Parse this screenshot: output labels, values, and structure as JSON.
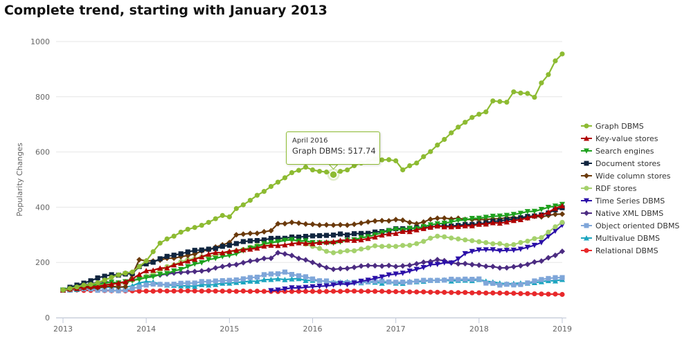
{
  "page": {
    "title": "Complete trend, starting with January 2013"
  },
  "tooltip": {
    "date": "April 2016",
    "label": "Graph DBMS: 517.74",
    "series": "Graph DBMS"
  },
  "chart_data": {
    "type": "line",
    "title": "Complete trend, starting with January 2013",
    "xlabel": "",
    "ylabel": "Popularity Changes",
    "xlim": [
      2013.0,
      2019.0
    ],
    "ylim": [
      0,
      1000
    ],
    "yticks": [
      0,
      200,
      400,
      600,
      800,
      1000
    ],
    "xticks": [
      2013,
      2014,
      2015,
      2016,
      2017,
      2018,
      2019
    ],
    "x_start": "2013-01",
    "x_end": "2019-01",
    "grid": true,
    "legend_position": "right",
    "series": [
      {
        "name": "Graph DBMS",
        "color": "#8dbb32",
        "marker": "circle",
        "anchors": [
          [
            2013.0,
            100
          ],
          [
            2013.333,
            120
          ],
          [
            2013.667,
            155
          ],
          [
            2013.833,
            165
          ],
          [
            2014.0,
            205
          ],
          [
            2014.167,
            270
          ],
          [
            2014.333,
            295
          ],
          [
            2014.5,
            320
          ],
          [
            2014.75,
            345
          ],
          [
            2014.917,
            370
          ],
          [
            2015.0,
            365
          ],
          [
            2015.083,
            395
          ],
          [
            2015.25,
            425
          ],
          [
            2015.5,
            475
          ],
          [
            2015.75,
            525
          ],
          [
            2015.917,
            545
          ],
          [
            2016.0,
            535
          ],
          [
            2016.083,
            530
          ],
          [
            2016.25,
            520
          ],
          [
            2016.417,
            535
          ],
          [
            2016.583,
            560
          ],
          [
            2016.75,
            575
          ],
          [
            2017.0,
            568
          ],
          [
            2017.083,
            535
          ],
          [
            2017.25,
            560
          ],
          [
            2017.5,
            625
          ],
          [
            2017.75,
            690
          ],
          [
            2017.917,
            725
          ],
          [
            2018.083,
            745
          ],
          [
            2018.167,
            785
          ],
          [
            2018.333,
            780
          ],
          [
            2018.417,
            818
          ],
          [
            2018.583,
            812
          ],
          [
            2018.667,
            798
          ],
          [
            2018.75,
            850
          ],
          [
            2018.833,
            880
          ],
          [
            2018.917,
            930
          ],
          [
            2019.0,
            955
          ]
        ]
      },
      {
        "name": "Key-value stores",
        "color": "#b00000",
        "marker": "triangle-up",
        "anchors": [
          [
            2013.0,
            100
          ],
          [
            2013.25,
            110
          ],
          [
            2013.5,
            118
          ],
          [
            2013.75,
            130
          ],
          [
            2014.0,
            170
          ],
          [
            2014.25,
            180
          ],
          [
            2014.5,
            205
          ],
          [
            2014.75,
            230
          ],
          [
            2015.0,
            240
          ],
          [
            2015.25,
            248
          ],
          [
            2015.5,
            262
          ],
          [
            2015.75,
            268
          ],
          [
            2016.0,
            268
          ],
          [
            2016.25,
            275
          ],
          [
            2016.5,
            280
          ],
          [
            2016.75,
            292
          ],
          [
            2017.0,
            305
          ],
          [
            2017.25,
            318
          ],
          [
            2017.5,
            332
          ],
          [
            2017.75,
            330
          ],
          [
            2018.0,
            338
          ],
          [
            2018.25,
            342
          ],
          [
            2018.5,
            355
          ],
          [
            2018.75,
            372
          ],
          [
            2019.0,
            405
          ]
        ]
      },
      {
        "name": "Search engines",
        "color": "#1ea11e",
        "marker": "triangle-down",
        "anchors": [
          [
            2013.0,
            100
          ],
          [
            2013.25,
            112
          ],
          [
            2013.5,
            125
          ],
          [
            2013.75,
            130
          ],
          [
            2014.0,
            145
          ],
          [
            2014.25,
            160
          ],
          [
            2014.5,
            185
          ],
          [
            2014.75,
            210
          ],
          [
            2015.0,
            225
          ],
          [
            2015.25,
            252
          ],
          [
            2015.5,
            272
          ],
          [
            2015.75,
            282
          ],
          [
            2016.0,
            272
          ],
          [
            2016.25,
            270
          ],
          [
            2016.5,
            282
          ],
          [
            2016.75,
            300
          ],
          [
            2017.0,
            320
          ],
          [
            2017.25,
            322
          ],
          [
            2017.5,
            340
          ],
          [
            2017.75,
            352
          ],
          [
            2018.0,
            360
          ],
          [
            2018.25,
            368
          ],
          [
            2018.5,
            378
          ],
          [
            2018.75,
            392
          ],
          [
            2019.0,
            410
          ]
        ]
      },
      {
        "name": "Document stores",
        "color": "#10253f",
        "marker": "square",
        "anchors": [
          [
            2013.0,
            100
          ],
          [
            2013.25,
            125
          ],
          [
            2013.5,
            150
          ],
          [
            2013.75,
            158
          ],
          [
            2013.833,
            160
          ],
          [
            2013.917,
            185
          ],
          [
            2014.25,
            222
          ],
          [
            2014.5,
            238
          ],
          [
            2014.75,
            248
          ],
          [
            2015.0,
            262
          ],
          [
            2015.25,
            278
          ],
          [
            2015.5,
            287
          ],
          [
            2015.75,
            292
          ],
          [
            2016.0,
            296
          ],
          [
            2016.25,
            299
          ],
          [
            2016.5,
            304
          ],
          [
            2016.75,
            310
          ],
          [
            2017.0,
            322
          ],
          [
            2017.25,
            326
          ],
          [
            2017.5,
            332
          ],
          [
            2017.75,
            334
          ],
          [
            2018.0,
            340
          ],
          [
            2018.25,
            350
          ],
          [
            2018.5,
            362
          ],
          [
            2018.75,
            372
          ],
          [
            2019.0,
            398
          ]
        ]
      },
      {
        "name": "Wide column stores",
        "color": "#6b3a0b",
        "marker": "diamond",
        "anchors": [
          [
            2013.0,
            100
          ],
          [
            2013.25,
            108
          ],
          [
            2013.5,
            112
          ],
          [
            2013.75,
            112
          ],
          [
            2013.833,
            155
          ],
          [
            2013.917,
            210
          ],
          [
            2014.083,
            205
          ],
          [
            2014.25,
            215
          ],
          [
            2014.5,
            225
          ],
          [
            2014.75,
            245
          ],
          [
            2015.0,
            272
          ],
          [
            2015.083,
            300
          ],
          [
            2015.25,
            305
          ],
          [
            2015.5,
            315
          ],
          [
            2015.583,
            340
          ],
          [
            2015.75,
            345
          ],
          [
            2016.0,
            338
          ],
          [
            2016.25,
            335
          ],
          [
            2016.5,
            338
          ],
          [
            2016.75,
            350
          ],
          [
            2017.0,
            355
          ],
          [
            2017.25,
            340
          ],
          [
            2017.5,
            360
          ],
          [
            2017.75,
            360
          ],
          [
            2018.0,
            355
          ],
          [
            2018.25,
            358
          ],
          [
            2018.5,
            362
          ],
          [
            2018.75,
            365
          ],
          [
            2019.0,
            375
          ]
        ]
      },
      {
        "name": "RDF stores",
        "color": "#a5d16c",
        "marker": "circle",
        "anchors": [
          [
            2013.0,
            100
          ],
          [
            2013.25,
            110
          ],
          [
            2013.5,
            118
          ],
          [
            2013.75,
            125
          ],
          [
            2014.0,
            150
          ],
          [
            2014.25,
            185
          ],
          [
            2014.5,
            210
          ],
          [
            2014.75,
            222
          ],
          [
            2015.0,
            238
          ],
          [
            2015.25,
            255
          ],
          [
            2015.5,
            270
          ],
          [
            2015.667,
            285
          ],
          [
            2015.833,
            278
          ],
          [
            2016.0,
            258
          ],
          [
            2016.25,
            235
          ],
          [
            2016.5,
            242
          ],
          [
            2016.75,
            260
          ],
          [
            2017.0,
            258
          ],
          [
            2017.25,
            268
          ],
          [
            2017.5,
            295
          ],
          [
            2017.75,
            285
          ],
          [
            2018.0,
            275
          ],
          [
            2018.25,
            268
          ],
          [
            2018.333,
            262
          ],
          [
            2018.5,
            272
          ],
          [
            2018.75,
            290
          ],
          [
            2019.0,
            345
          ]
        ]
      },
      {
        "name": "Time Series DBMS",
        "color": "#2b10a8",
        "marker": "triangle-down",
        "anchors": [
          [
            2015.417,
            100
          ],
          [
            2015.583,
            100
          ],
          [
            2015.75,
            108
          ],
          [
            2016.0,
            112
          ],
          [
            2016.25,
            118
          ],
          [
            2016.5,
            125
          ],
          [
            2016.75,
            142
          ],
          [
            2017.0,
            158
          ],
          [
            2017.25,
            175
          ],
          [
            2017.417,
            192
          ],
          [
            2017.667,
            198
          ],
          [
            2017.833,
            232
          ],
          [
            2018.0,
            245
          ],
          [
            2018.25,
            242
          ],
          [
            2018.5,
            248
          ],
          [
            2018.75,
            272
          ],
          [
            2019.0,
            335
          ]
        ]
      },
      {
        "name": "Native XML DBMS",
        "color": "#4c2c82",
        "marker": "diamond",
        "anchors": [
          [
            2013.0,
            100
          ],
          [
            2013.25,
            118
          ],
          [
            2013.5,
            130
          ],
          [
            2013.75,
            125
          ],
          [
            2014.0,
            150
          ],
          [
            2014.25,
            158
          ],
          [
            2014.5,
            165
          ],
          [
            2014.75,
            172
          ],
          [
            2015.0,
            190
          ],
          [
            2015.25,
            205
          ],
          [
            2015.5,
            215
          ],
          [
            2015.583,
            235
          ],
          [
            2015.75,
            225
          ],
          [
            2016.0,
            200
          ],
          [
            2016.25,
            175
          ],
          [
            2016.5,
            182
          ],
          [
            2016.75,
            188
          ],
          [
            2017.0,
            185
          ],
          [
            2017.25,
            195
          ],
          [
            2017.5,
            210
          ],
          [
            2017.75,
            195
          ],
          [
            2018.0,
            190
          ],
          [
            2018.25,
            180
          ],
          [
            2018.5,
            188
          ],
          [
            2018.75,
            205
          ],
          [
            2019.0,
            240
          ]
        ]
      },
      {
        "name": "Object oriented DBMS",
        "color": "#7fa6d9",
        "marker": "square",
        "anchors": [
          [
            2013.0,
            100
          ],
          [
            2013.25,
            105
          ],
          [
            2013.5,
            100
          ],
          [
            2013.75,
            100
          ],
          [
            2014.0,
            118
          ],
          [
            2014.25,
            120
          ],
          [
            2014.5,
            125
          ],
          [
            2014.75,
            130
          ],
          [
            2015.0,
            135
          ],
          [
            2015.25,
            145
          ],
          [
            2015.5,
            158
          ],
          [
            2015.667,
            165
          ],
          [
            2015.917,
            148
          ],
          [
            2016.0,
            140
          ],
          [
            2016.25,
            125
          ],
          [
            2016.5,
            128
          ],
          [
            2016.75,
            132
          ],
          [
            2017.0,
            128
          ],
          [
            2017.25,
            132
          ],
          [
            2017.5,
            135
          ],
          [
            2017.75,
            138
          ],
          [
            2018.0,
            140
          ],
          [
            2018.083,
            125
          ],
          [
            2018.25,
            118
          ],
          [
            2018.5,
            120
          ],
          [
            2018.75,
            138
          ],
          [
            2019.0,
            145
          ]
        ]
      },
      {
        "name": "Multivalue DBMS",
        "color": "#1da5bf",
        "marker": "triangle-up",
        "anchors": [
          [
            2013.0,
            100
          ],
          [
            2013.25,
            105
          ],
          [
            2013.5,
            110
          ],
          [
            2013.75,
            110
          ],
          [
            2014.0,
            130
          ],
          [
            2014.25,
            118
          ],
          [
            2014.5,
            115
          ],
          [
            2014.75,
            118
          ],
          [
            2015.0,
            125
          ],
          [
            2015.25,
            132
          ],
          [
            2015.5,
            138
          ],
          [
            2015.75,
            140
          ],
          [
            2016.0,
            135
          ],
          [
            2016.25,
            128
          ],
          [
            2016.5,
            128
          ],
          [
            2016.75,
            128
          ],
          [
            2017.0,
            125
          ],
          [
            2017.25,
            130
          ],
          [
            2017.5,
            135
          ],
          [
            2017.75,
            135
          ],
          [
            2018.0,
            138
          ],
          [
            2018.25,
            125
          ],
          [
            2018.5,
            125
          ],
          [
            2018.75,
            130
          ],
          [
            2019.0,
            138
          ]
        ]
      },
      {
        "name": "Relational DBMS",
        "color": "#e8292b",
        "marker": "circle",
        "anchors": [
          [
            2013.0,
            100
          ],
          [
            2013.5,
            98
          ],
          [
            2014.0,
            96
          ],
          [
            2014.5,
            97
          ],
          [
            2015.0,
            96
          ],
          [
            2015.5,
            95
          ],
          [
            2016.0,
            95
          ],
          [
            2016.5,
            96
          ],
          [
            2017.0,
            94
          ],
          [
            2017.5,
            92
          ],
          [
            2018.0,
            90
          ],
          [
            2018.5,
            87
          ],
          [
            2019.0,
            84
          ]
        ]
      }
    ]
  }
}
